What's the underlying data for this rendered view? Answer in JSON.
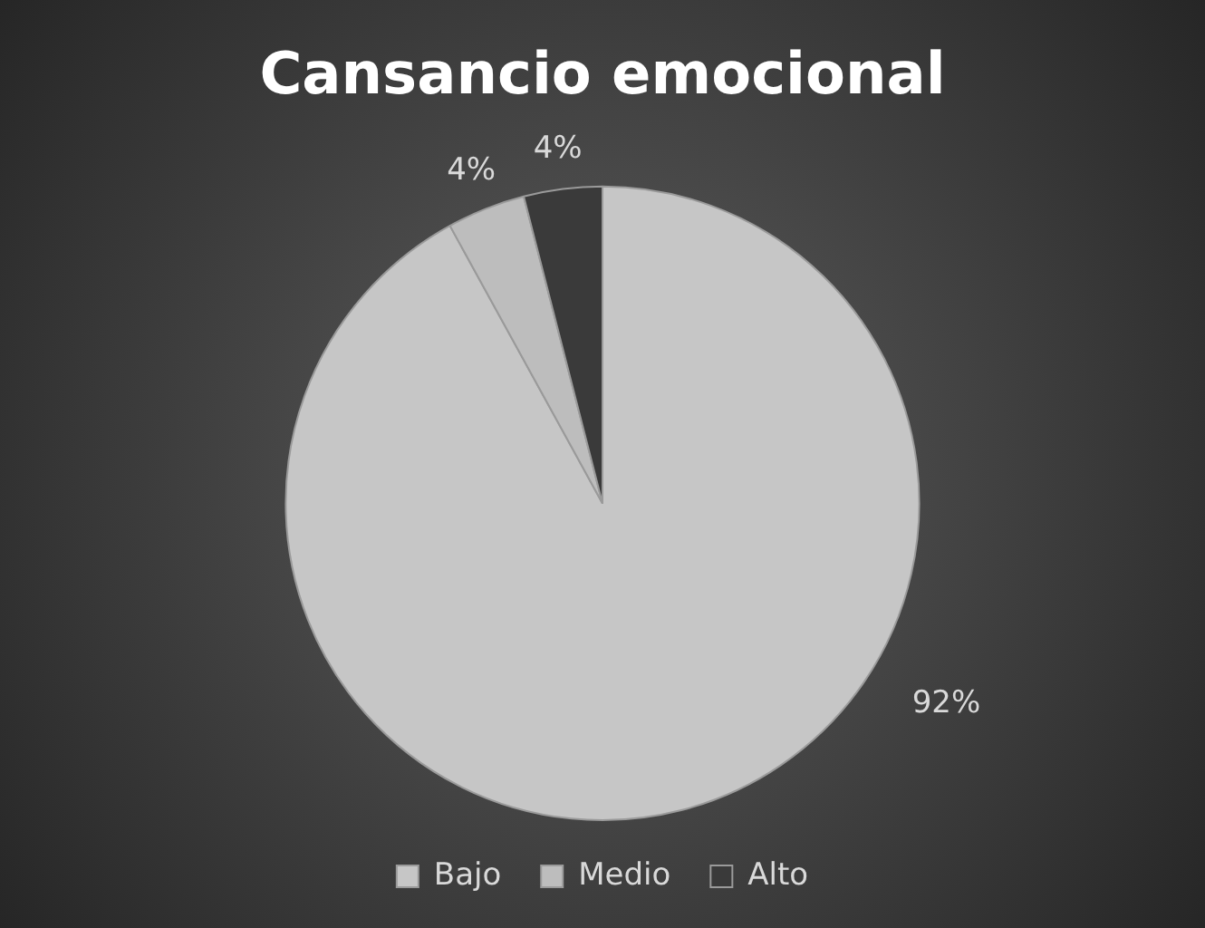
{
  "chart_data": {
    "type": "pie",
    "title": "Cansancio emocional",
    "categories": [
      "Bajo",
      "Medio",
      "Alto"
    ],
    "values": [
      92,
      4,
      4
    ],
    "colors": [
      "#c6c6c6",
      "#bdbdbd",
      "#3a3a3a"
    ],
    "value_labels": [
      "92%",
      "4%",
      "4%"
    ],
    "legend": "bottom"
  }
}
